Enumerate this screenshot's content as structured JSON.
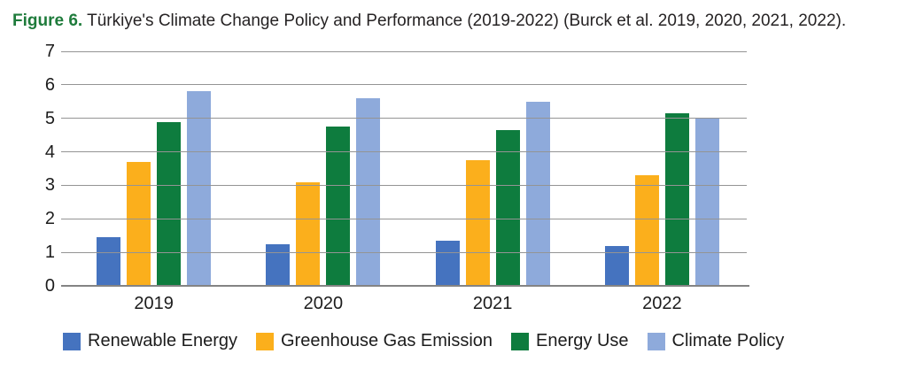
{
  "caption": {
    "label": "Figure 6.",
    "text": "Türkiye's Climate Change Policy and Performance (2019-2022) (Burck et al. 2019, 2020, 2021, 2022)."
  },
  "colors": {
    "caption_label_green": "#1e7b3b",
    "gridline_gray": "#949494",
    "axis_gray": "#848484",
    "text_dark": "#1c1c1c"
  },
  "chart_data": {
    "type": "bar",
    "title": "",
    "xlabel": "",
    "ylabel": "",
    "categories": [
      "2019",
      "2020",
      "2021",
      "2022"
    ],
    "series": [
      {
        "name": "Renewable Energy",
        "color": "#4573BF",
        "values": [
          1.45,
          1.25,
          1.35,
          1.2
        ]
      },
      {
        "name": "Greenhouse Gas Emission",
        "color": "#FBAF1C",
        "values": [
          3.7,
          3.1,
          3.75,
          3.3
        ]
      },
      {
        "name": "Energy Use",
        "color": "#0E7C3E",
        "values": [
          4.9,
          4.75,
          4.65,
          5.15
        ]
      },
      {
        "name": "Climate Policy",
        "color": "#8EAADB",
        "values": [
          5.8,
          5.6,
          5.5,
          5.0
        ]
      }
    ],
    "ylim": [
      0,
      7
    ],
    "yticks": [
      0,
      1,
      2,
      3,
      4,
      5,
      6,
      7
    ],
    "grid": true,
    "legend_position": "bottom"
  }
}
